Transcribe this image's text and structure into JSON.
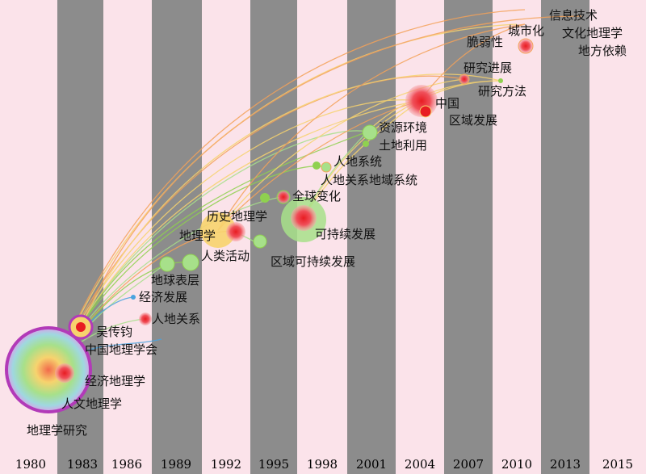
{
  "colors": {
    "band_light": "#fbe3ea",
    "band_dark": "#8c8c8c",
    "node_red": "#e8343a",
    "node_green": "#8fd14f",
    "node_orange": "#f4a259",
    "node_purple": "#b23ab8",
    "node_blue": "#4aa3df"
  },
  "years": [
    "1980",
    "1983",
    "1986",
    "1989",
    "1992",
    "1995",
    "1998",
    "2001",
    "2004",
    "2007",
    "2010",
    "2013",
    "2015"
  ],
  "keywords": [
    {
      "label": "信息技术",
      "year": "2013"
    },
    {
      "label": "文化地理学",
      "year": "2013"
    },
    {
      "label": "地方依赖",
      "year": "2015"
    },
    {
      "label": "城市化",
      "year": "2010"
    },
    {
      "label": "脆弱性",
      "year": "2010"
    },
    {
      "label": "研究进展",
      "year": "2007"
    },
    {
      "label": "研究方法",
      "year": "2010"
    },
    {
      "label": "中国",
      "year": "2004"
    },
    {
      "label": "区域发展",
      "year": "2004"
    },
    {
      "label": "资源环境",
      "year": "2001"
    },
    {
      "label": "土地利用",
      "year": "2001"
    },
    {
      "label": "人地系统",
      "year": "1998"
    },
    {
      "label": "人地关系地域系统",
      "year": "1998"
    },
    {
      "label": "全球变化",
      "year": "1995"
    },
    {
      "label": "历史地理学",
      "year": "1992"
    },
    {
      "label": "地理学",
      "year": "1992"
    },
    {
      "label": "可持续发展",
      "year": "1998"
    },
    {
      "label": "人类活动",
      "year": "1992"
    },
    {
      "label": "区域可持续发展",
      "year": "1995"
    },
    {
      "label": "地球表层",
      "year": "1989"
    },
    {
      "label": "经济发展",
      "year": "1986"
    },
    {
      "label": "人地关系",
      "year": "1986"
    },
    {
      "label": "吴传钧",
      "year": "1983"
    },
    {
      "label": "中国地理学会",
      "year": "1983"
    },
    {
      "label": "经济地理学",
      "year": "1980"
    },
    {
      "label": "人文地理学",
      "year": "1980"
    },
    {
      "label": "地理学研究",
      "year": "1980"
    }
  ]
}
